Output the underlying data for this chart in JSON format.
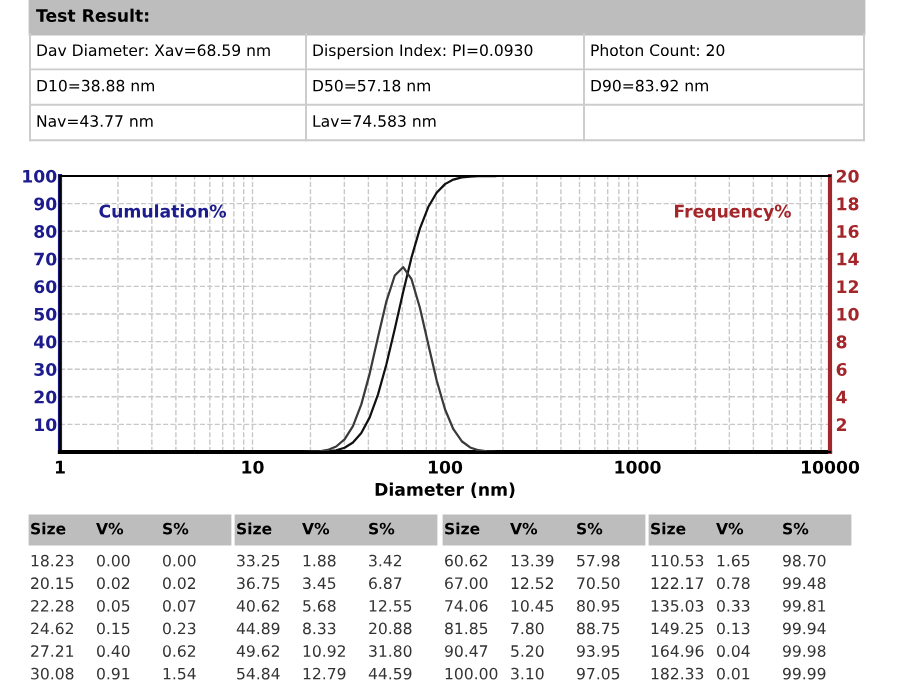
{
  "chart_data": {
    "type": "line",
    "title": "Test Result:",
    "annotations": [
      "Dav Diameter: Xav=68.59 nm",
      "Dispersion Index: PI=0.0930",
      "Photon Count: 20",
      "D10=38.88 nm",
      "D50=57.18 nm",
      "D90=83.92 nm",
      "Nav=43.77 nm",
      "Lav=74.583 nm",
      "Size",
      "V%",
      "S%",
      "Size",
      "V%",
      "S%",
      "Size",
      "V%",
      "S%",
      "Size",
      "V%",
      "S%",
      "18.23",
      "0.00",
      "0.00",
      "33.25",
      "1.88",
      "3.42",
      "60.62",
      "13.39",
      "57.98",
      "110.53",
      "1.65",
      "98.70",
      "20.15",
      "0.02",
      "0.02",
      "36.75",
      "3.45",
      "6.87",
      "67.00",
      "12.52",
      "70.50",
      "122.17",
      "0.78",
      "99.48",
      "22.28",
      "0.05",
      "0.07",
      "40.62",
      "5.68",
      "12.55",
      "74.06",
      "10.45",
      "80.95",
      "135.03",
      "0.33",
      "99.81",
      "24.62",
      "0.15",
      "0.23",
      "44.89",
      "8.33",
      "20.88",
      "81.85",
      "7.80",
      "88.75",
      "149.25",
      "0.13",
      "99.94",
      "27.21",
      "0.40",
      "0.62",
      "49.62",
      "10.92",
      "31.80",
      "90.47",
      "5.20",
      "93.95",
      "164.96",
      "0.04",
      "99.98",
      "30.08",
      "0.91",
      "1.54",
      "54.84",
      "12.79",
      "44.59",
      "100.00",
      "3.10",
      "97.05",
      "182.33",
      "0.01",
      "99.99"
    ],
    "xlabel": "Diameter (nm)",
    "ylabel": "Cumulation%",
    "y2label": "Frequency%",
    "x": [
      18.23,
      20.15,
      22.28,
      24.62,
      27.21,
      30.08,
      33.25,
      36.75,
      40.62,
      44.89,
      49.62,
      54.84,
      60.62,
      67.0,
      74.06,
      81.85,
      90.47,
      100.0,
      110.53,
      122.17,
      135.03,
      149.25,
      164.96,
      182.33
    ],
    "series": [
      {
        "color": "#3a3a3a",
        "axis": "y2",
        "values": [
          0.0,
          0.02,
          0.05,
          0.15,
          0.4,
          0.91,
          1.88,
          3.45,
          5.68,
          8.33,
          10.92,
          12.79,
          13.39,
          12.52,
          10.45,
          7.8,
          5.2,
          3.1,
          1.65,
          0.78,
          0.33,
          0.13,
          0.04,
          0.01
        ]
      },
      {
        "color": "#111111",
        "values": [
          0.0,
          0.02,
          0.07,
          0.23,
          0.62,
          1.54,
          3.42,
          6.87,
          12.55,
          20.88,
          31.8,
          44.59,
          57.98,
          70.5,
          80.95,
          88.75,
          93.95,
          97.05,
          98.7,
          99.48,
          99.81,
          99.94,
          99.98,
          99.99
        ]
      }
    ],
    "log": "x",
    "xlim": [
      1,
      10000
    ],
    "xticks": [
      1,
      10,
      100,
      1000,
      10000
    ],
    "ylim": [
      0,
      100
    ],
    "yticks": [
      10,
      20,
      30,
      40,
      50,
      60,
      70,
      80,
      90,
      100
    ],
    "y2lim": [
      0,
      20
    ],
    "y2ticks": [
      2,
      4,
      6,
      8,
      10,
      12,
      14,
      16,
      18,
      20
    ],
    "grid": true
  }
}
